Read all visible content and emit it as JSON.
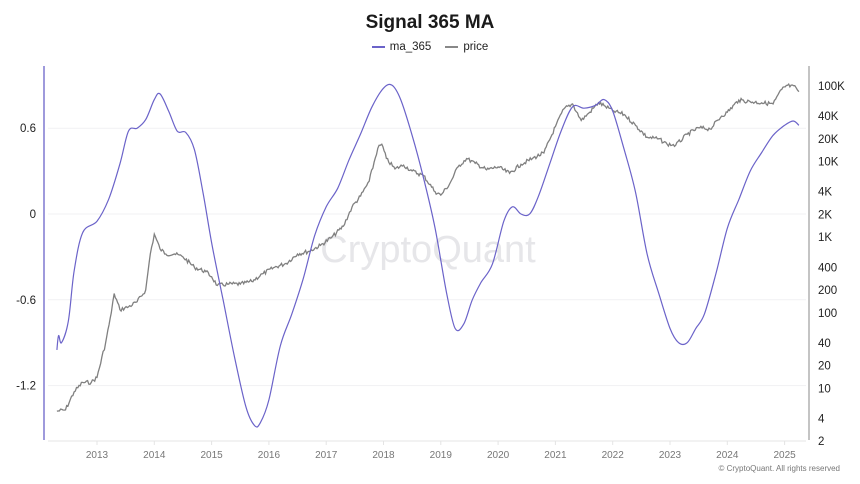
{
  "chart_data": {
    "type": "line",
    "title": "Signal 365 MA",
    "legend": [
      {
        "name": "ma_365",
        "color": "#6b63c9"
      },
      {
        "name": "price",
        "color": "#888888"
      }
    ],
    "legend_position": "top-center",
    "xlabel": "",
    "ylabel_left": "",
    "ylabel_right": "",
    "x_ticks": [
      "2013",
      "2014",
      "2015",
      "2016",
      "2017",
      "2018",
      "2019",
      "2020",
      "2021",
      "2022",
      "2023",
      "2024",
      "2025"
    ],
    "y_left_ticks": [
      "0.6",
      "0",
      "-0.6",
      "-1.2"
    ],
    "y_left_range": [
      -1.5,
      0.95
    ],
    "y_right_ticks": [
      "100K",
      "40K",
      "20K",
      "10K",
      "4K",
      "2K",
      "1K",
      "400",
      "200",
      "100",
      "40",
      "20",
      "10",
      "4",
      "2"
    ],
    "y_right_scale": "log",
    "y_right_range": [
      2,
      130000
    ],
    "grid": "horizontal-light",
    "watermark": "CryptoQuant",
    "series": [
      {
        "name": "ma_365",
        "axis": "left",
        "x": [
          2012.3,
          2012.33,
          2012.38,
          2012.5,
          2012.6,
          2012.75,
          2013.0,
          2013.2,
          2013.4,
          2013.55,
          2013.7,
          2013.85,
          2014.0,
          2014.1,
          2014.25,
          2014.4,
          2014.55,
          2014.7,
          2014.85,
          2015.0,
          2015.2,
          2015.4,
          2015.6,
          2015.75,
          2015.85,
          2016.0,
          2016.2,
          2016.4,
          2016.6,
          2016.8,
          2017.0,
          2017.2,
          2017.4,
          2017.6,
          2017.8,
          2018.0,
          2018.15,
          2018.3,
          2018.5,
          2018.7,
          2018.9,
          2019.1,
          2019.25,
          2019.4,
          2019.55,
          2019.7,
          2019.9,
          2020.1,
          2020.25,
          2020.4,
          2020.55,
          2020.7,
          2020.9,
          2021.1,
          2021.3,
          2021.5,
          2021.7,
          2021.85,
          2022.0,
          2022.2,
          2022.4,
          2022.6,
          2022.8,
          2023.0,
          2023.15,
          2023.3,
          2023.45,
          2023.6,
          2023.8,
          2024.0,
          2024.2,
          2024.4,
          2024.6,
          2024.8,
          2025.0,
          2025.15,
          2025.25
        ],
        "values": [
          -0.95,
          -0.85,
          -0.9,
          -0.75,
          -0.4,
          -0.13,
          -0.05,
          0.1,
          0.35,
          0.58,
          0.6,
          0.66,
          0.8,
          0.84,
          0.72,
          0.58,
          0.57,
          0.45,
          0.15,
          -0.2,
          -0.6,
          -1.0,
          -1.35,
          -1.48,
          -1.46,
          -1.3,
          -0.92,
          -0.7,
          -0.45,
          -0.15,
          0.05,
          0.18,
          0.38,
          0.56,
          0.75,
          0.88,
          0.9,
          0.8,
          0.55,
          0.25,
          -0.1,
          -0.55,
          -0.8,
          -0.77,
          -0.6,
          -0.48,
          -0.35,
          -0.05,
          0.05,
          0.0,
          0.0,
          0.12,
          0.35,
          0.58,
          0.75,
          0.74,
          0.76,
          0.8,
          0.72,
          0.45,
          0.15,
          -0.28,
          -0.55,
          -0.8,
          -0.9,
          -0.9,
          -0.8,
          -0.7,
          -0.42,
          -0.1,
          0.1,
          0.3,
          0.43,
          0.55,
          0.62,
          0.65,
          0.62
        ]
      },
      {
        "name": "price",
        "axis": "right",
        "x": [
          2012.3,
          2012.45,
          2012.6,
          2012.75,
          2012.9,
          2013.0,
          2013.15,
          2013.25,
          2013.3,
          2013.4,
          2013.55,
          2013.7,
          2013.85,
          2013.93,
          2014.0,
          2014.1,
          2014.2,
          2014.35,
          2014.5,
          2014.7,
          2014.9,
          2015.0,
          2015.1,
          2015.3,
          2015.5,
          2015.7,
          2015.9,
          2016.1,
          2016.3,
          2016.5,
          2016.7,
          2016.9,
          2017.1,
          2017.3,
          2017.45,
          2017.6,
          2017.75,
          2017.9,
          2017.97,
          2018.05,
          2018.2,
          2018.35,
          2018.5,
          2018.7,
          2018.9,
          2019.0,
          2019.15,
          2019.3,
          2019.45,
          2019.6,
          2019.8,
          2020.0,
          2020.2,
          2020.4,
          2020.6,
          2020.8,
          2021.0,
          2021.15,
          2021.3,
          2021.45,
          2021.6,
          2021.75,
          2021.85,
          2022.0,
          2022.2,
          2022.4,
          2022.6,
          2022.8,
          2022.95,
          2023.1,
          2023.3,
          2023.5,
          2023.7,
          2023.9,
          2024.0,
          2024.2,
          2024.4,
          2024.6,
          2024.8,
          2024.95,
          2025.05,
          2025.2,
          2025.25
        ],
        "values": [
          5,
          5.2,
          9,
          12,
          12,
          14,
          40,
          100,
          180,
          110,
          120,
          140,
          200,
          600,
          1100,
          700,
          600,
          600,
          550,
          400,
          350,
          300,
          230,
          240,
          240,
          260,
          330,
          400,
          450,
          600,
          650,
          780,
          1000,
          1400,
          2500,
          3500,
          5500,
          15000,
          17000,
          11000,
          8000,
          9000,
          7500,
          6500,
          4000,
          3600,
          5000,
          8500,
          11000,
          9500,
          7800,
          8500,
          7000,
          9200,
          11000,
          13000,
          29000,
          50000,
          58000,
          35000,
          45000,
          60000,
          55000,
          47000,
          42000,
          30000,
          21000,
          20000,
          17000,
          16500,
          23000,
          28000,
          27000,
          40000,
          45000,
          65000,
          62000,
          60000,
          58000,
          90000,
          102000,
          95000,
          84000
        ]
      }
    ]
  },
  "footer": {
    "copyright": "© CryptoQuant. All rights reserved"
  }
}
